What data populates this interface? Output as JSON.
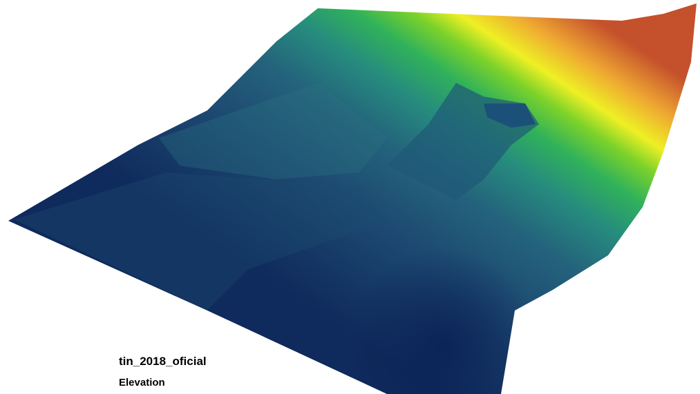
{
  "legend": {
    "layer": "tin_2018_oficial",
    "field": "Elevation"
  }
}
